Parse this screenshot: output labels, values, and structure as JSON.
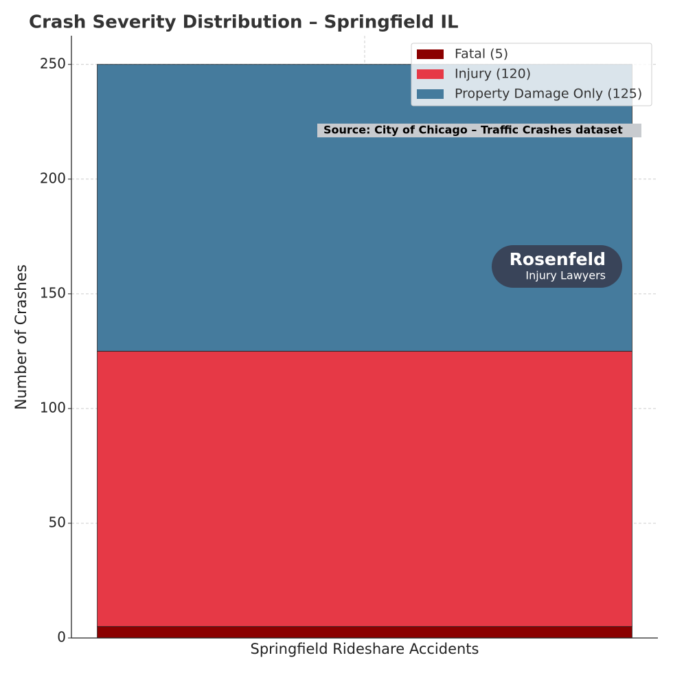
{
  "chart_data": {
    "type": "stacked_bar",
    "title": "Crash Severity Distribution – Springfield IL",
    "ylabel": "Number of Crashes",
    "categories": [
      "Springfield Rideshare Accidents"
    ],
    "series": [
      {
        "name": "Fatal (5)",
        "color": "#8b0000",
        "values": [
          5
        ]
      },
      {
        "name": "Injury (120)",
        "color": "#e63946",
        "values": [
          120
        ]
      },
      {
        "name": "Property Damage Only (125)",
        "color": "#457b9d",
        "values": [
          125
        ]
      }
    ],
    "ylim": [
      0,
      262.5
    ],
    "yticks": [
      0,
      50,
      100,
      150,
      200,
      250
    ],
    "grid": true,
    "legend": "upper right",
    "annotation": "Source: City of Chicago – Traffic Crashes dataset",
    "logo": {
      "name": "Rosenfeld",
      "tagline": "Injury Lawyers"
    }
  }
}
